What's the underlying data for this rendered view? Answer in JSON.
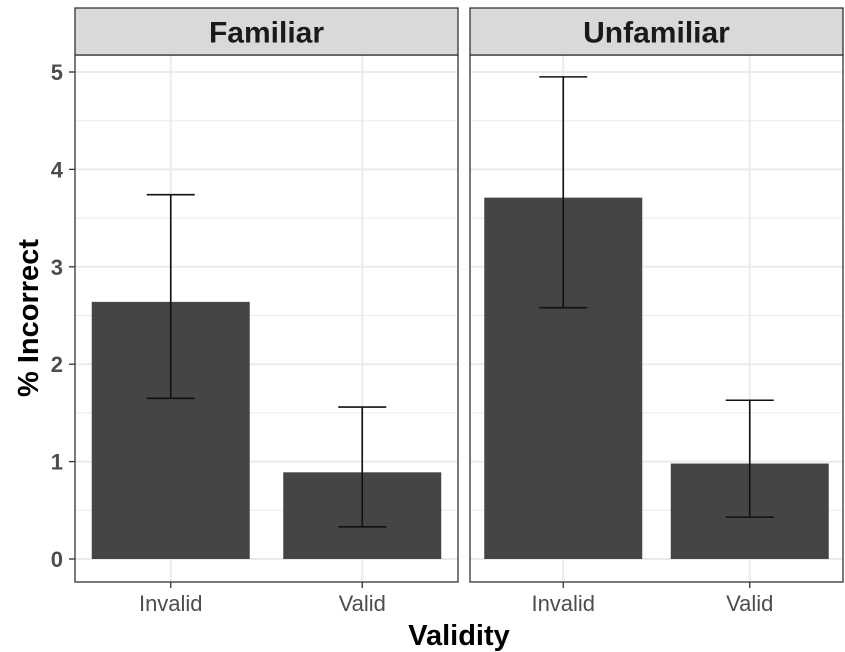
{
  "chart_data": {
    "type": "bar",
    "facets": [
      "Familiar",
      "Unfamiliar"
    ],
    "categories": [
      "Invalid",
      "Valid"
    ],
    "panels": [
      {
        "facet": "Familiar",
        "values": [
          2.64,
          0.89
        ],
        "error_low": [
          1.65,
          0.33
        ],
        "error_high": [
          3.74,
          1.56
        ]
      },
      {
        "facet": "Unfamiliar",
        "values": [
          3.71,
          0.98
        ],
        "error_low": [
          2.58,
          0.43
        ],
        "error_high": [
          4.95,
          1.63
        ]
      }
    ],
    "xlabel": "Validity",
    "ylabel": "% Incorrect",
    "ylim": [
      0,
      5.2
    ],
    "yticks": [
      "0",
      "1",
      "2",
      "3",
      "4",
      "5"
    ],
    "grid": true,
    "colors": {
      "bar": "#454545",
      "strip_background": "#d9d9d9",
      "grid": "#ebebeb",
      "panel_border": "#333333"
    }
  }
}
